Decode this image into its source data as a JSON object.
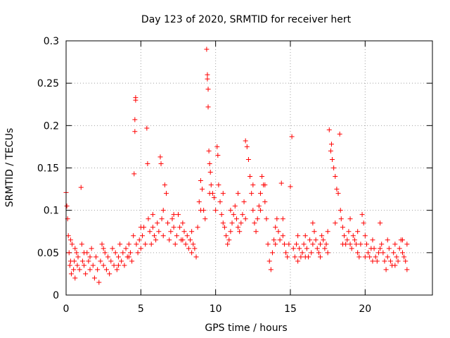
{
  "chart_data": {
    "type": "scatter",
    "title": "Day 123 of 2020, SRMTID for receiver hert",
    "xlabel": "GPS time / hours",
    "ylabel": "SRMTID / TECUs",
    "xlim": [
      0,
      24.5
    ],
    "ylim": [
      0,
      0.3
    ],
    "x_ticks": [
      0,
      5,
      10,
      15,
      20
    ],
    "y_ticks": [
      0,
      0.05,
      0.1,
      0.15,
      0.2,
      0.25,
      0.3
    ],
    "x_tick_labels": [
      "0",
      "5",
      "10",
      "15",
      "20"
    ],
    "y_tick_labels": [
      "0",
      "0.05",
      "0.1",
      "0.15",
      "0.2",
      "0.25",
      "0.3"
    ],
    "grid": true,
    "marker": "+",
    "series": [
      {
        "name": "SRMTID",
        "color": "#ff0000",
        "points": [
          [
            0.0,
            0.121
          ],
          [
            0.05,
            0.105
          ],
          [
            0.1,
            0.09
          ],
          [
            0.15,
            0.07
          ],
          [
            0.2,
            0.05
          ],
          [
            0.25,
            0.035
          ],
          [
            0.3,
            0.04
          ],
          [
            0.35,
            0.025
          ],
          [
            0.4,
            0.06
          ],
          [
            0.5,
            0.03
          ],
          [
            0.55,
            0.04
          ],
          [
            0.6,
            0.02
          ],
          [
            0.7,
            0.05
          ],
          [
            0.75,
            0.035
          ],
          [
            0.8,
            0.045
          ],
          [
            0.9,
            0.03
          ],
          [
            1.0,
            0.127
          ],
          [
            1.05,
            0.06
          ],
          [
            1.1,
            0.04
          ],
          [
            1.2,
            0.035
          ],
          [
            1.3,
            0.025
          ],
          [
            1.4,
            0.05
          ],
          [
            1.5,
            0.04
          ],
          [
            1.6,
            0.03
          ],
          [
            1.7,
            0.055
          ],
          [
            1.8,
            0.035
          ],
          [
            1.9,
            0.02
          ],
          [
            2.0,
            0.045
          ],
          [
            2.1,
            0.03
          ],
          [
            2.2,
            0.015
          ],
          [
            2.3,
            0.04
          ],
          [
            2.4,
            0.06
          ],
          [
            2.5,
            0.035
          ],
          [
            2.6,
            0.05
          ],
          [
            2.7,
            0.03
          ],
          [
            2.8,
            0.045
          ],
          [
            2.9,
            0.025
          ],
          [
            3.0,
            0.04
          ],
          [
            3.1,
            0.055
          ],
          [
            3.2,
            0.035
          ],
          [
            3.3,
            0.05
          ],
          [
            3.4,
            0.03
          ],
          [
            3.5,
            0.045
          ],
          [
            3.6,
            0.06
          ],
          [
            3.7,
            0.04
          ],
          [
            3.8,
            0.05
          ],
          [
            3.9,
            0.035
          ],
          [
            4.0,
            0.055
          ],
          [
            4.1,
            0.045
          ],
          [
            4.2,
            0.06
          ],
          [
            4.3,
            0.05
          ],
          [
            4.4,
            0.04
          ],
          [
            4.5,
            0.07
          ],
          [
            4.55,
            0.143
          ],
          [
            4.6,
            0.193
          ],
          [
            4.6,
            0.207
          ],
          [
            4.65,
            0.23
          ],
          [
            4.65,
            0.233
          ],
          [
            4.7,
            0.06
          ],
          [
            4.8,
            0.05
          ],
          [
            4.9,
            0.065
          ],
          [
            5.0,
            0.055
          ],
          [
            5.1,
            0.07
          ],
          [
            5.2,
            0.08
          ],
          [
            5.3,
            0.06
          ],
          [
            5.4,
            0.197
          ],
          [
            5.45,
            0.155
          ],
          [
            5.5,
            0.09
          ],
          [
            5.6,
            0.075
          ],
          [
            5.7,
            0.06
          ],
          [
            5.8,
            0.08
          ],
          [
            5.9,
            0.07
          ],
          [
            6.0,
            0.065
          ],
          [
            6.1,
            0.085
          ],
          [
            6.2,
            0.075
          ],
          [
            6.3,
            0.163
          ],
          [
            6.35,
            0.155
          ],
          [
            6.4,
            0.09
          ],
          [
            6.5,
            0.07
          ],
          [
            6.6,
            0.13
          ],
          [
            6.7,
            0.12
          ],
          [
            6.8,
            0.085
          ],
          [
            6.9,
            0.065
          ],
          [
            7.0,
            0.075
          ],
          [
            7.1,
            0.09
          ],
          [
            7.2,
            0.08
          ],
          [
            7.3,
            0.06
          ],
          [
            7.4,
            0.07
          ],
          [
            7.5,
            0.095
          ],
          [
            7.6,
            0.08
          ],
          [
            7.7,
            0.065
          ],
          [
            7.8,
            0.085
          ],
          [
            7.9,
            0.075
          ],
          [
            8.0,
            0.06
          ],
          [
            8.1,
            0.07
          ],
          [
            8.2,
            0.055
          ],
          [
            8.3,
            0.065
          ],
          [
            8.4,
            0.05
          ],
          [
            8.5,
            0.06
          ],
          [
            8.6,
            0.055
          ],
          [
            8.7,
            0.045
          ],
          [
            8.8,
            0.08
          ],
          [
            8.9,
            0.11
          ],
          [
            9.0,
            0.135
          ],
          [
            9.1,
            0.125
          ],
          [
            9.2,
            0.1
          ],
          [
            9.3,
            0.09
          ],
          [
            9.4,
            0.29
          ],
          [
            9.45,
            0.26
          ],
          [
            9.45,
            0.255
          ],
          [
            9.5,
            0.243
          ],
          [
            9.5,
            0.222
          ],
          [
            9.55,
            0.17
          ],
          [
            9.6,
            0.155
          ],
          [
            9.65,
            0.145
          ],
          [
            9.7,
            0.13
          ],
          [
            9.8,
            0.12
          ],
          [
            9.9,
            0.115
          ],
          [
            10.0,
            0.1
          ],
          [
            10.1,
            0.175
          ],
          [
            10.15,
            0.165
          ],
          [
            10.2,
            0.13
          ],
          [
            10.3,
            0.11
          ],
          [
            10.4,
            0.095
          ],
          [
            10.5,
            0.085
          ],
          [
            10.6,
            0.08
          ],
          [
            10.7,
            0.07
          ],
          [
            10.8,
            0.06
          ],
          [
            10.9,
            0.065
          ],
          [
            11.0,
            0.075
          ],
          [
            11.1,
            0.085
          ],
          [
            11.2,
            0.095
          ],
          [
            11.3,
            0.105
          ],
          [
            11.4,
            0.09
          ],
          [
            11.5,
            0.08
          ],
          [
            11.6,
            0.075
          ],
          [
            11.7,
            0.085
          ],
          [
            11.8,
            0.095
          ],
          [
            11.9,
            0.11
          ],
          [
            12.0,
            0.182
          ],
          [
            12.1,
            0.175
          ],
          [
            12.2,
            0.16
          ],
          [
            12.3,
            0.14
          ],
          [
            12.4,
            0.12
          ],
          [
            12.5,
            0.1
          ],
          [
            12.6,
            0.085
          ],
          [
            12.7,
            0.075
          ],
          [
            12.8,
            0.09
          ],
          [
            12.9,
            0.105
          ],
          [
            13.0,
            0.12
          ],
          [
            13.1,
            0.14
          ],
          [
            13.2,
            0.13
          ],
          [
            13.3,
            0.11
          ],
          [
            13.4,
            0.09
          ],
          [
            13.5,
            0.06
          ],
          [
            13.6,
            0.04
          ],
          [
            13.7,
            0.03
          ],
          [
            13.8,
            0.05
          ],
          [
            13.9,
            0.065
          ],
          [
            14.0,
            0.08
          ],
          [
            14.1,
            0.09
          ],
          [
            14.2,
            0.075
          ],
          [
            14.3,
            0.065
          ],
          [
            14.4,
            0.132
          ],
          [
            14.5,
            0.07
          ],
          [
            14.6,
            0.06
          ],
          [
            14.7,
            0.05
          ],
          [
            14.8,
            0.045
          ],
          [
            14.9,
            0.06
          ],
          [
            15.0,
            0.128
          ],
          [
            15.1,
            0.187
          ],
          [
            15.2,
            0.055
          ],
          [
            15.3,
            0.045
          ],
          [
            15.4,
            0.06
          ],
          [
            15.5,
            0.07
          ],
          [
            15.6,
            0.055
          ],
          [
            15.7,
            0.045
          ],
          [
            15.8,
            0.05
          ],
          [
            15.9,
            0.06
          ],
          [
            16.0,
            0.07
          ],
          [
            16.1,
            0.055
          ],
          [
            16.2,
            0.045
          ],
          [
            16.3,
            0.065
          ],
          [
            16.4,
            0.05
          ],
          [
            16.5,
            0.06
          ],
          [
            16.6,
            0.075
          ],
          [
            16.7,
            0.065
          ],
          [
            16.8,
            0.055
          ],
          [
            16.9,
            0.05
          ],
          [
            17.0,
            0.06
          ],
          [
            17.1,
            0.07
          ],
          [
            17.2,
            0.065
          ],
          [
            17.3,
            0.055
          ],
          [
            17.4,
            0.06
          ],
          [
            17.5,
            0.075
          ],
          [
            17.6,
            0.195
          ],
          [
            17.7,
            0.17
          ],
          [
            17.75,
            0.178
          ],
          [
            17.8,
            0.16
          ],
          [
            17.9,
            0.15
          ],
          [
            18.0,
            0.14
          ],
          [
            18.1,
            0.125
          ],
          [
            18.2,
            0.12
          ],
          [
            18.3,
            0.19
          ],
          [
            18.35,
            0.1
          ],
          [
            18.4,
            0.09
          ],
          [
            18.5,
            0.08
          ],
          [
            18.6,
            0.07
          ],
          [
            18.7,
            0.06
          ],
          [
            18.8,
            0.065
          ],
          [
            18.9,
            0.075
          ],
          [
            19.0,
            0.06
          ],
          [
            19.1,
            0.055
          ],
          [
            19.2,
            0.07
          ],
          [
            19.3,
            0.065
          ],
          [
            19.4,
            0.06
          ],
          [
            19.5,
            0.05
          ],
          [
            19.6,
            0.045
          ],
          [
            19.7,
            0.06
          ],
          [
            19.8,
            0.095
          ],
          [
            19.9,
            0.085
          ],
          [
            20.0,
            0.07
          ],
          [
            20.1,
            0.06
          ],
          [
            20.2,
            0.05
          ],
          [
            20.3,
            0.045
          ],
          [
            20.4,
            0.055
          ],
          [
            20.5,
            0.065
          ],
          [
            20.6,
            0.055
          ],
          [
            20.7,
            0.045
          ],
          [
            20.8,
            0.04
          ],
          [
            20.9,
            0.05
          ],
          [
            21.0,
            0.085
          ],
          [
            21.1,
            0.06
          ],
          [
            21.2,
            0.05
          ],
          [
            21.3,
            0.04
          ],
          [
            21.4,
            0.03
          ],
          [
            21.5,
            0.045
          ],
          [
            21.6,
            0.055
          ],
          [
            21.7,
            0.04
          ],
          [
            21.8,
            0.035
          ],
          [
            21.9,
            0.05
          ],
          [
            22.0,
            0.06
          ],
          [
            22.1,
            0.045
          ],
          [
            22.2,
            0.04
          ],
          [
            22.3,
            0.055
          ],
          [
            22.4,
            0.065
          ],
          [
            22.5,
            0.05
          ],
          [
            22.6,
            0.045
          ],
          [
            22.7,
            0.04
          ],
          [
            22.8,
            0.06
          ],
          [
            0.3,
            0.065
          ],
          [
            0.6,
            0.055
          ],
          [
            1.2,
            0.05
          ],
          [
            1.6,
            0.045
          ],
          [
            2.5,
            0.055
          ],
          [
            3.5,
            0.035
          ],
          [
            4.2,
            0.045
          ],
          [
            5.0,
            0.08
          ],
          [
            5.8,
            0.095
          ],
          [
            6.5,
            0.1
          ],
          [
            7.2,
            0.095
          ],
          [
            7.8,
            0.065
          ],
          [
            8.4,
            0.075
          ],
          [
            9.0,
            0.1
          ],
          [
            9.6,
            0.12
          ],
          [
            10.5,
            0.12
          ],
          [
            11.0,
            0.1
          ],
          [
            11.5,
            0.12
          ],
          [
            12.0,
            0.09
          ],
          [
            12.5,
            0.13
          ],
          [
            13.0,
            0.1
          ],
          [
            13.3,
            0.13
          ],
          [
            14.0,
            0.06
          ],
          [
            14.5,
            0.09
          ],
          [
            15.5,
            0.04
          ],
          [
            16.0,
            0.045
          ],
          [
            16.5,
            0.085
          ],
          [
            17.0,
            0.045
          ],
          [
            17.5,
            0.05
          ],
          [
            18.0,
            0.085
          ],
          [
            18.5,
            0.06
          ],
          [
            19.0,
            0.09
          ],
          [
            19.5,
            0.075
          ],
          [
            20.0,
            0.045
          ],
          [
            20.5,
            0.04
          ],
          [
            21.0,
            0.055
          ],
          [
            21.5,
            0.065
          ],
          [
            22.0,
            0.035
          ],
          [
            22.5,
            0.065
          ],
          [
            22.8,
            0.03
          ]
        ]
      }
    ]
  }
}
